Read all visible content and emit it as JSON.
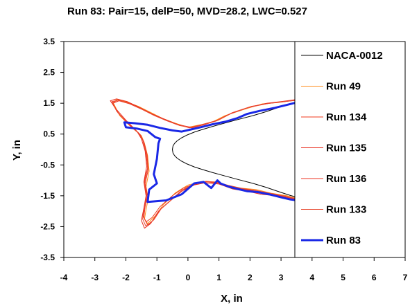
{
  "chart_data": {
    "type": "line",
    "title": "Run 83: Pair=15, delP=50, MVD=28.2, LWC=0.527",
    "xlabel": "X, in",
    "ylabel": "Y, in",
    "xlim": [
      -4,
      7
    ],
    "ylim": [
      -3.5,
      3.5
    ],
    "x_ticks": [
      -4,
      -3,
      -2,
      -1,
      0,
      1,
      2,
      3,
      4,
      5,
      6,
      7
    ],
    "y_ticks": [
      3.5,
      2.5,
      1.5,
      0.5,
      -0.5,
      -1.5,
      -2.5,
      -3.5
    ],
    "grid": false,
    "legend_position": "right",
    "series": [
      {
        "name": "NACA-0012",
        "color": "#000000",
        "width": 1,
        "upper": [
          [
            -0.5,
            0
          ],
          [
            -0.48,
            0.12
          ],
          [
            -0.43,
            0.2
          ],
          [
            -0.35,
            0.28
          ],
          [
            -0.22,
            0.37
          ],
          [
            -0.03,
            0.47
          ],
          [
            0.22,
            0.57
          ],
          [
            0.5,
            0.66
          ],
          [
            0.8,
            0.75
          ],
          [
            1.2,
            0.86
          ],
          [
            1.6,
            0.97
          ],
          [
            2.1,
            1.1
          ],
          [
            2.5,
            1.22
          ],
          [
            3.0,
            1.39
          ],
          [
            3.3,
            1.49
          ],
          [
            3.6,
            1.57
          ],
          [
            3.75,
            1.63
          ]
        ],
        "lower": [
          [
            -0.5,
            0
          ],
          [
            -0.48,
            -0.12
          ],
          [
            -0.43,
            -0.2
          ],
          [
            -0.35,
            -0.28
          ],
          [
            -0.22,
            -0.37
          ],
          [
            -0.03,
            -0.47
          ],
          [
            0.22,
            -0.57
          ],
          [
            0.5,
            -0.66
          ],
          [
            0.8,
            -0.75
          ],
          [
            1.2,
            -0.86
          ],
          [
            1.6,
            -0.97
          ],
          [
            2.1,
            -1.1
          ],
          [
            2.5,
            -1.22
          ],
          [
            3.0,
            -1.39
          ],
          [
            3.3,
            -1.49
          ],
          [
            3.6,
            -1.57
          ],
          [
            3.75,
            -1.63
          ]
        ]
      },
      {
        "name": "Run 49",
        "color": "#FF8C1A",
        "width": 1,
        "points": [
          [
            3.65,
            -1.62
          ],
          [
            3.2,
            -1.5
          ],
          [
            2.7,
            -1.42
          ],
          [
            2.2,
            -1.3
          ],
          [
            1.7,
            -1.25
          ],
          [
            1.3,
            -1.18
          ],
          [
            0.95,
            -1.05
          ],
          [
            0.75,
            -1.05
          ],
          [
            0.4,
            -1.05
          ],
          [
            0.0,
            -1.15
          ],
          [
            -0.4,
            -1.4
          ],
          [
            -0.8,
            -1.8
          ],
          [
            -1.05,
            -2.15
          ],
          [
            -1.3,
            -2.4
          ],
          [
            -1.4,
            -2.25
          ],
          [
            -1.35,
            -1.95
          ],
          [
            -1.28,
            -1.6
          ],
          [
            -1.35,
            -1.2
          ],
          [
            -1.25,
            -0.7
          ],
          [
            -1.3,
            -0.2
          ],
          [
            -1.4,
            0.2
          ],
          [
            -1.5,
            0.45
          ],
          [
            -1.8,
            0.7
          ],
          [
            -2.2,
            1.1
          ],
          [
            -2.4,
            1.5
          ],
          [
            -2.3,
            1.62
          ],
          [
            -2.0,
            1.55
          ],
          [
            -1.6,
            1.4
          ],
          [
            -1.2,
            1.2
          ],
          [
            -0.8,
            1.0
          ],
          [
            -0.4,
            0.85
          ],
          [
            0.0,
            0.72
          ],
          [
            0.4,
            0.8
          ],
          [
            0.8,
            0.9
          ],
          [
            1.2,
            1.1
          ],
          [
            1.8,
            1.3
          ],
          [
            2.4,
            1.48
          ],
          [
            2.9,
            1.52
          ],
          [
            3.3,
            1.58
          ]
        ]
      },
      {
        "name": "Run 134",
        "color": "#F03A1E",
        "width": 1,
        "points": [
          [
            3.72,
            -1.68
          ],
          [
            3.25,
            -1.58
          ],
          [
            2.8,
            -1.47
          ],
          [
            2.3,
            -1.4
          ],
          [
            1.85,
            -1.3
          ],
          [
            1.4,
            -1.22
          ],
          [
            1.05,
            -1.1
          ],
          [
            0.6,
            -1.05
          ],
          [
            0.25,
            -1.1
          ],
          [
            -0.15,
            -1.25
          ],
          [
            -0.5,
            -1.5
          ],
          [
            -0.9,
            -1.85
          ],
          [
            -1.15,
            -2.2
          ],
          [
            -1.35,
            -2.35
          ],
          [
            -1.45,
            -2.15
          ],
          [
            -1.4,
            -1.8
          ],
          [
            -1.32,
            -1.45
          ],
          [
            -1.4,
            -1.0
          ],
          [
            -1.3,
            -0.6
          ],
          [
            -1.35,
            -0.1
          ],
          [
            -1.45,
            0.3
          ],
          [
            -1.6,
            0.55
          ],
          [
            -1.95,
            0.85
          ],
          [
            -2.3,
            1.25
          ],
          [
            -2.45,
            1.55
          ],
          [
            -2.25,
            1.6
          ],
          [
            -1.9,
            1.5
          ],
          [
            -1.5,
            1.32
          ],
          [
            -1.1,
            1.12
          ],
          [
            -0.7,
            0.95
          ],
          [
            -0.3,
            0.8
          ],
          [
            0.1,
            0.72
          ],
          [
            0.5,
            0.82
          ],
          [
            0.95,
            0.95
          ],
          [
            1.4,
            1.18
          ],
          [
            2.0,
            1.38
          ],
          [
            2.6,
            1.5
          ],
          [
            3.1,
            1.55
          ],
          [
            3.5,
            1.6
          ]
        ]
      },
      {
        "name": "Run 135",
        "color": "#E8291B",
        "width": 1,
        "points": [
          [
            3.75,
            -1.7
          ],
          [
            3.3,
            -1.6
          ],
          [
            2.85,
            -1.5
          ],
          [
            2.35,
            -1.45
          ],
          [
            1.9,
            -1.35
          ],
          [
            1.45,
            -1.28
          ],
          [
            1.0,
            -1.12
          ],
          [
            0.55,
            -1.08
          ],
          [
            0.2,
            -1.15
          ],
          [
            -0.2,
            -1.35
          ],
          [
            -0.55,
            -1.65
          ],
          [
            -0.95,
            -2.0
          ],
          [
            -1.2,
            -2.4
          ],
          [
            -1.4,
            -2.55
          ],
          [
            -1.5,
            -2.3
          ],
          [
            -1.42,
            -1.9
          ],
          [
            -1.35,
            -1.5
          ],
          [
            -1.42,
            -1.05
          ],
          [
            -1.33,
            -0.55
          ],
          [
            -1.38,
            -0.05
          ],
          [
            -1.5,
            0.35
          ],
          [
            -1.65,
            0.6
          ],
          [
            -2.0,
            0.95
          ],
          [
            -2.35,
            1.35
          ],
          [
            -2.5,
            1.58
          ],
          [
            -2.3,
            1.64
          ],
          [
            -1.95,
            1.55
          ],
          [
            -1.55,
            1.36
          ],
          [
            -1.15,
            1.15
          ],
          [
            -0.75,
            0.98
          ],
          [
            -0.35,
            0.82
          ],
          [
            0.05,
            0.7
          ],
          [
            0.45,
            0.8
          ],
          [
            0.9,
            0.92
          ],
          [
            1.35,
            1.15
          ],
          [
            1.95,
            1.36
          ],
          [
            2.55,
            1.5
          ],
          [
            3.05,
            1.56
          ],
          [
            3.5,
            1.62
          ]
        ]
      },
      {
        "name": "Run 136",
        "color": "#EE3322",
        "width": 1,
        "points": [
          [
            3.7,
            -1.66
          ],
          [
            3.22,
            -1.55
          ],
          [
            2.75,
            -1.45
          ],
          [
            2.25,
            -1.36
          ],
          [
            1.8,
            -1.28
          ],
          [
            1.35,
            -1.2
          ],
          [
            0.98,
            -1.08
          ],
          [
            0.65,
            -1.04
          ],
          [
            0.3,
            -1.1
          ],
          [
            -0.1,
            -1.28
          ],
          [
            -0.45,
            -1.55
          ],
          [
            -0.85,
            -1.9
          ],
          [
            -1.1,
            -2.28
          ],
          [
            -1.3,
            -2.45
          ],
          [
            -1.42,
            -2.2
          ],
          [
            -1.38,
            -1.85
          ],
          [
            -1.3,
            -1.5
          ],
          [
            -1.38,
            -1.1
          ],
          [
            -1.28,
            -0.65
          ],
          [
            -1.32,
            -0.15
          ],
          [
            -1.42,
            0.25
          ],
          [
            -1.55,
            0.5
          ],
          [
            -1.88,
            0.8
          ],
          [
            -2.25,
            1.18
          ],
          [
            -2.42,
            1.5
          ],
          [
            -2.22,
            1.58
          ],
          [
            -1.88,
            1.48
          ],
          [
            -1.48,
            1.3
          ],
          [
            -1.08,
            1.1
          ],
          [
            -0.68,
            0.93
          ],
          [
            -0.28,
            0.78
          ],
          [
            0.12,
            0.7
          ],
          [
            0.52,
            0.8
          ],
          [
            0.98,
            0.95
          ],
          [
            1.45,
            1.2
          ],
          [
            2.05,
            1.4
          ],
          [
            2.65,
            1.5
          ],
          [
            3.15,
            1.56
          ],
          [
            3.55,
            1.6
          ]
        ]
      },
      {
        "name": "Run 133",
        "color": "#E84B33",
        "width": 1,
        "points": [
          [
            3.68,
            -1.64
          ],
          [
            3.18,
            -1.52
          ],
          [
            2.7,
            -1.43
          ],
          [
            2.2,
            -1.33
          ],
          [
            1.75,
            -1.26
          ],
          [
            1.3,
            -1.16
          ],
          [
            0.92,
            -1.06
          ],
          [
            0.58,
            -1.03
          ],
          [
            0.22,
            -1.12
          ],
          [
            -0.18,
            -1.3
          ],
          [
            -0.5,
            -1.6
          ],
          [
            -0.9,
            -1.95
          ],
          [
            -1.15,
            -2.32
          ],
          [
            -1.36,
            -2.48
          ],
          [
            -1.46,
            -2.25
          ],
          [
            -1.4,
            -1.88
          ],
          [
            -1.33,
            -1.52
          ],
          [
            -1.4,
            -1.08
          ],
          [
            -1.3,
            -0.62
          ],
          [
            -1.34,
            -0.12
          ],
          [
            -1.45,
            0.28
          ],
          [
            -1.58,
            0.52
          ],
          [
            -1.92,
            0.82
          ],
          [
            -2.28,
            1.22
          ],
          [
            -2.44,
            1.52
          ],
          [
            -2.25,
            1.6
          ],
          [
            -1.92,
            1.5
          ],
          [
            -1.52,
            1.33
          ],
          [
            -1.12,
            1.12
          ],
          [
            -0.72,
            0.95
          ],
          [
            -0.32,
            0.8
          ],
          [
            0.08,
            0.71
          ],
          [
            0.48,
            0.81
          ],
          [
            0.92,
            0.93
          ],
          [
            1.38,
            1.16
          ],
          [
            1.98,
            1.37
          ],
          [
            2.58,
            1.49
          ],
          [
            3.08,
            1.55
          ],
          [
            3.48,
            1.6
          ]
        ]
      },
      {
        "name": "Run 83",
        "color": "#1A28E6",
        "width": 3,
        "points": [
          [
            3.75,
            -1.68
          ],
          [
            3.3,
            -1.62
          ],
          [
            3.0,
            -1.55
          ],
          [
            2.6,
            -1.45
          ],
          [
            2.25,
            -1.38
          ],
          [
            1.9,
            -1.35
          ],
          [
            1.6,
            -1.28
          ],
          [
            1.3,
            -1.2
          ],
          [
            1.05,
            -1.1
          ],
          [
            0.95,
            -1.0
          ],
          [
            0.75,
            -1.25
          ],
          [
            0.5,
            -1.05
          ],
          [
            0.2,
            -1.1
          ],
          [
            -0.2,
            -1.45
          ],
          [
            -0.7,
            -1.65
          ],
          [
            -1.3,
            -1.7
          ],
          [
            -1.25,
            -1.3
          ],
          [
            -1.0,
            -1.1
          ],
          [
            -1.1,
            -0.8
          ],
          [
            -1.0,
            -0.3
          ],
          [
            -0.95,
            0.2
          ],
          [
            -0.9,
            0.35
          ],
          [
            -1.05,
            0.4
          ],
          [
            -1.3,
            0.6
          ],
          [
            -1.65,
            0.68
          ],
          [
            -2.0,
            0.72
          ],
          [
            -2.05,
            0.88
          ],
          [
            -1.7,
            0.85
          ],
          [
            -1.3,
            0.8
          ],
          [
            -0.9,
            0.7
          ],
          [
            -0.5,
            0.62
          ],
          [
            -0.2,
            0.58
          ],
          [
            0.1,
            0.65
          ],
          [
            0.4,
            0.72
          ],
          [
            0.8,
            0.82
          ],
          [
            1.2,
            0.9
          ],
          [
            1.6,
            1.02
          ],
          [
            1.9,
            1.15
          ],
          [
            2.3,
            1.25
          ],
          [
            2.8,
            1.35
          ],
          [
            3.2,
            1.45
          ],
          [
            3.6,
            1.55
          ]
        ]
      }
    ]
  }
}
